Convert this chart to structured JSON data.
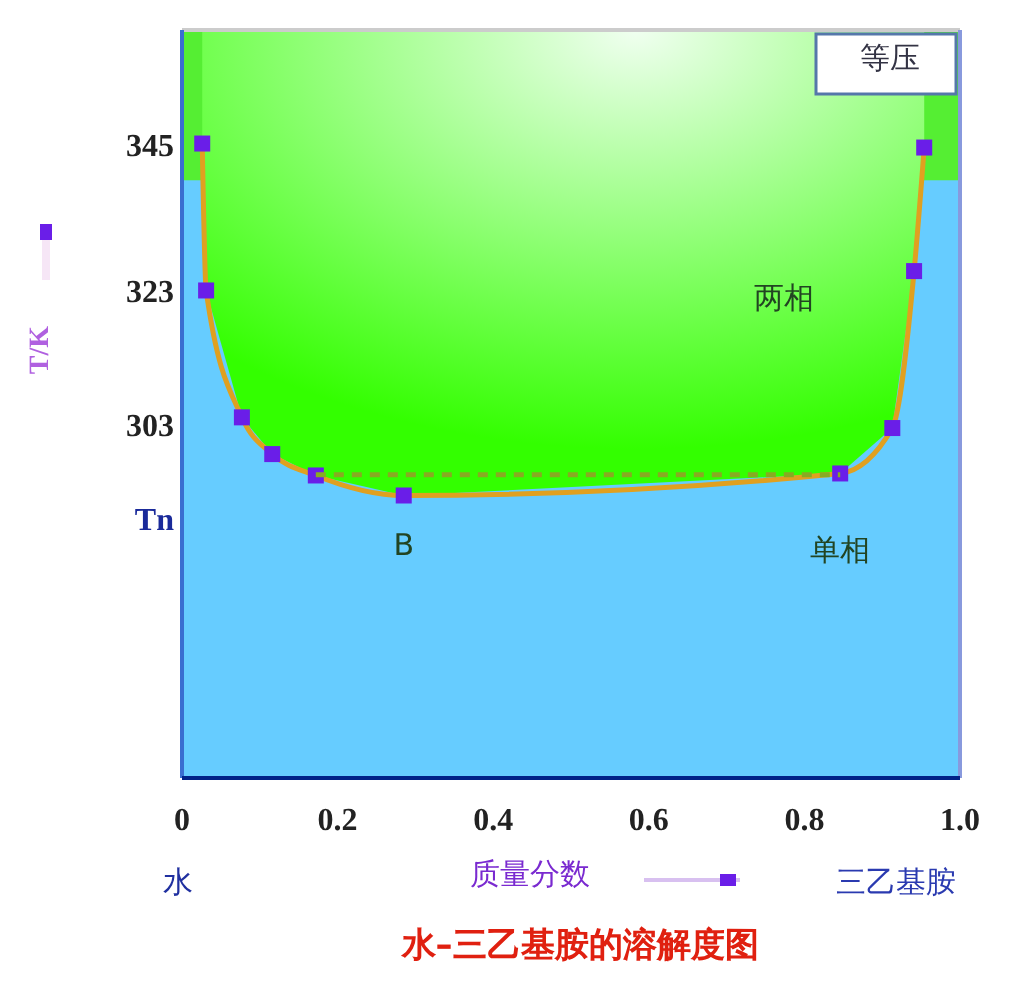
{
  "chart_data": {
    "type": "line",
    "title": "水–三乙基胺的溶解度图",
    "xlabel": "质量分数",
    "ylabel": "T/K",
    "xlim": [
      0,
      1
    ],
    "xticks": [
      {
        "value": 0,
        "label": "0"
      },
      0.2,
      0.4,
      0.6,
      0.8,
      {
        "value": 1,
        "label": "1.0"
      }
    ],
    "ylim": [
      250,
      362
    ],
    "yticks": [
      {
        "value": 289,
        "label": "Tn"
      },
      303,
      323,
      345
    ],
    "bands": [
      {
        "axis": "y",
        "from": 339.5,
        "to": 362,
        "color": "#55ee33"
      }
    ],
    "series": [
      {
        "color": "#e0a020",
        "marker": "square",
        "x": [
          0.026,
          0.031,
          0.077,
          0.116,
          0.172,
          0.285,
          0.846,
          0.913,
          0.941,
          0.954
        ],
        "values": [
          345,
          323,
          304,
          298.5,
          295.3,
          292.3,
          295.6,
          302.4,
          325.9,
          344.4
        ]
      },
      {
        "color": "#88aa22",
        "marker": "none",
        "line_style": "dashed",
        "x": [
          0.172,
          0.846
        ],
        "values": [
          295.4,
          295.4
        ]
      }
    ],
    "annotations": [
      "等压",
      "两相",
      "单相",
      {
        "text": "B",
        "x": 0.285,
        "y": 292.3
      },
      "水",
      "三乙基胺"
    ]
  }
}
